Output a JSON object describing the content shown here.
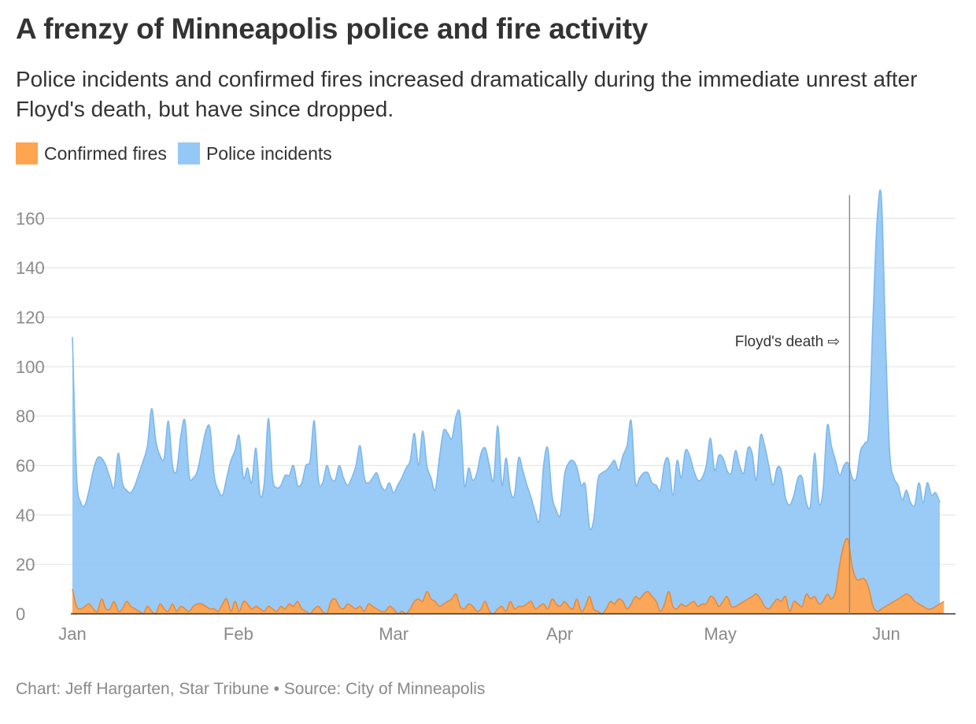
{
  "header": {
    "title": "A frenzy of Minneapolis police and fire activity",
    "subtitle": "Police incidents and confirmed fires increased dramatically during the immediate unrest after Floyd's death, but have since dropped."
  },
  "footer": {
    "credit": "Chart: Jeff Hargarten, Star Tribune • Source: City of Minneapolis"
  },
  "chart_data": {
    "type": "area",
    "title": "A frenzy of Minneapolis police and fire activity",
    "xlabel": "",
    "ylabel": "",
    "x_unit": "day of 2020",
    "x_start": "2020-01-01",
    "xlim": [
      "2020-01-01",
      "2020-06-11"
    ],
    "ylim": [
      0,
      170
    ],
    "y_ticks": [
      0,
      20,
      40,
      60,
      80,
      100,
      120,
      140,
      160
    ],
    "x_ticks": [
      {
        "label": "Jan",
        "date": "2020-01-01"
      },
      {
        "label": "Feb",
        "date": "2020-02-01"
      },
      {
        "label": "Mar",
        "date": "2020-03-01"
      },
      {
        "label": "Apr",
        "date": "2020-04-01"
      },
      {
        "label": "May",
        "date": "2020-05-01"
      },
      {
        "label": "Jun",
        "date": "2020-06-01"
      }
    ],
    "grid": true,
    "legend_position": "top-left",
    "colors": {
      "fires": "#ffa450",
      "police": "#94c8f6",
      "police_line": "#7eb8ec",
      "fires_line": "#e8893a",
      "grid": "#e6e6e6",
      "annotation": "#888888"
    },
    "legend": [
      {
        "name": "Confirmed fires",
        "color": "#ffa450"
      },
      {
        "name": "Police incidents",
        "color": "#94c8f6"
      }
    ],
    "annotation": {
      "label": "Floyd's death",
      "arrow": "⇨",
      "date": "2020-05-25"
    },
    "series": [
      {
        "name": "Police incidents",
        "color": "#94c8f6",
        "values": [
          112,
          56,
          45,
          44,
          50,
          58,
          63,
          63,
          60,
          55,
          51,
          65,
          53,
          50,
          49,
          52,
          57,
          62,
          68,
          83,
          70,
          64,
          63,
          78,
          60,
          58,
          72,
          78,
          56,
          55,
          58,
          66,
          74,
          75,
          56,
          50,
          48,
          55,
          62,
          66,
          72,
          55,
          59,
          53,
          67,
          48,
          53,
          79,
          55,
          51,
          52,
          56,
          56,
          60,
          52,
          53,
          60,
          62,
          78,
          54,
          53,
          60,
          55,
          54,
          60,
          55,
          52,
          55,
          60,
          68,
          55,
          53,
          55,
          57,
          52,
          50,
          53,
          49,
          52,
          55,
          59,
          62,
          73,
          60,
          74,
          60,
          55,
          50,
          63,
          74,
          73,
          71,
          80,
          80,
          52,
          59,
          54,
          57,
          65,
          67,
          60,
          54,
          76,
          52,
          63,
          50,
          48,
          63,
          58,
          52,
          47,
          41,
          38,
          60,
          67,
          48,
          42,
          40,
          56,
          61,
          62,
          59,
          52,
          52,
          35,
          38,
          54,
          57,
          58,
          60,
          62,
          58,
          64,
          68,
          78,
          53,
          55,
          57,
          57,
          53,
          52,
          50,
          61,
          62,
          48,
          62,
          55,
          66,
          64,
          58,
          54,
          55,
          60,
          71,
          58,
          64,
          63,
          58,
          57,
          66,
          60,
          57,
          67,
          65,
          54,
          72,
          68,
          60,
          52,
          59,
          58,
          47,
          44,
          48,
          55,
          55,
          45,
          44,
          65,
          45,
          50,
          76,
          68,
          62,
          56,
          60,
          61,
          55,
          55,
          66,
          69,
          75,
          120,
          160,
          168,
          110,
          65,
          55,
          52,
          46,
          50,
          45,
          44,
          53,
          45,
          53,
          48,
          49,
          45
        ]
      },
      {
        "name": "Confirmed fires",
        "color": "#ffa450",
        "values": [
          10,
          3,
          2,
          3,
          4,
          2,
          1,
          6,
          2,
          2,
          5,
          1,
          2,
          5,
          3,
          2,
          1,
          0,
          3,
          1,
          0,
          4,
          2,
          1,
          4,
          1,
          3,
          2,
          1,
          3,
          4,
          4,
          3,
          2,
          2,
          1,
          4,
          6,
          1,
          5,
          1,
          5,
          4,
          2,
          3,
          2,
          1,
          3,
          2,
          1,
          3,
          2,
          4,
          3,
          5,
          2,
          1,
          0,
          2,
          3,
          1,
          0,
          5,
          6,
          3,
          2,
          4,
          3,
          2,
          3,
          1,
          4,
          3,
          2,
          1,
          1,
          3,
          2,
          0,
          1,
          0,
          2,
          5,
          6,
          5,
          9,
          6,
          5,
          3,
          4,
          5,
          6,
          8,
          3,
          2,
          4,
          3,
          1,
          2,
          5,
          1,
          0,
          2,
          3,
          1,
          5,
          2,
          3,
          3,
          4,
          5,
          2,
          3,
          4,
          2,
          6,
          4,
          3,
          5,
          3,
          2,
          6,
          1,
          3,
          7,
          2,
          1,
          0,
          2,
          5,
          4,
          6,
          5,
          2,
          4,
          7,
          6,
          8,
          9,
          7,
          5,
          1,
          4,
          9,
          3,
          2,
          4,
          3,
          4,
          5,
          3,
          4,
          4,
          7,
          6,
          3,
          5,
          7,
          3,
          3,
          4,
          5,
          6,
          7,
          8,
          6,
          3,
          2,
          4,
          6,
          5,
          7,
          1,
          5,
          4,
          3,
          8,
          6,
          7,
          4,
          5,
          8,
          6,
          9,
          20,
          28,
          30,
          19,
          14,
          14,
          14,
          10,
          3,
          1,
          2,
          3,
          4,
          5,
          6,
          7,
          8,
          7,
          5,
          4,
          3,
          2,
          2,
          3,
          4,
          5
        ]
      }
    ]
  }
}
